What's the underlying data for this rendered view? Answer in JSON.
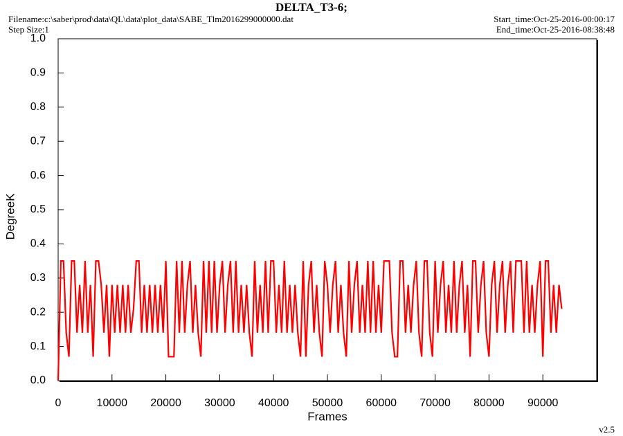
{
  "chart_data": {
    "type": "line",
    "title": "DELTA_T3-6;",
    "filename": "Filename:c:\\saber\\prod\\data\\QL\\data\\plot_data\\SABE_Tlm2016299000000.dat",
    "step_size": "Step Size:1",
    "start_time": "Start_time:Oct-25-2016-00:00:17",
    "end_time": "End_time:Oct-25-2016-08:38:48",
    "version": "v2.5",
    "x_label": "Frames",
    "y_label": "DegreeK",
    "xlim": [
      0,
      100000
    ],
    "xticks": [
      0,
      10000,
      20000,
      30000,
      40000,
      50000,
      60000,
      70000,
      80000,
      90000
    ],
    "ylim": [
      0,
      1
    ],
    "yticks": [
      {
        "value": 0,
        "label": "0.0"
      },
      0.1,
      0.2,
      0.3,
      0.4,
      0.5,
      0.6,
      0.7,
      0.8,
      0.9,
      {
        "value": 1,
        "label": "1.0"
      }
    ],
    "series": [
      {
        "name": "DELTA_T3-6",
        "color": "#ff0000",
        "x": [
          0,
          500,
          1000,
          1500,
          2000,
          2500,
          3000,
          3500,
          4000,
          4500,
          5000,
          5500,
          6000,
          6500,
          7000,
          7500,
          8000,
          8500,
          9000,
          9500,
          10000,
          10500,
          11000,
          11500,
          12000,
          12500,
          13000,
          13500,
          14000,
          14500,
          15000,
          15500,
          16000,
          16500,
          17000,
          17500,
          18000,
          18500,
          19000,
          19500,
          20000,
          20500,
          21000,
          21500,
          22000,
          22500,
          23000,
          23500,
          24000,
          24500,
          25000,
          25500,
          26000,
          26500,
          27000,
          27500,
          28000,
          28500,
          29000,
          29500,
          30000,
          30500,
          31000,
          31500,
          32000,
          32500,
          33000,
          33500,
          34000,
          34500,
          35000,
          35500,
          36000,
          36500,
          37000,
          37500,
          38000,
          38500,
          39000,
          39500,
          40000,
          40500,
          41000,
          41500,
          42000,
          42500,
          43000,
          43500,
          44000,
          44500,
          45000,
          45500,
          46000,
          46500,
          47000,
          47500,
          48000,
          48500,
          49000,
          49500,
          50000,
          50500,
          51000,
          51500,
          52000,
          52500,
          53000,
          53500,
          54000,
          54500,
          55000,
          55500,
          56000,
          56500,
          57000,
          57500,
          58000,
          58500,
          59000,
          59500,
          60000,
          60500,
          61000,
          61500,
          62000,
          62500,
          63000,
          63500,
          64000,
          64500,
          65000,
          65500,
          66000,
          66500,
          67000,
          67500,
          68000,
          68500,
          69000,
          69500,
          70000,
          70500,
          71000,
          71500,
          72000,
          72500,
          73000,
          73500,
          74000,
          74500,
          75000,
          75500,
          76000,
          76500,
          77000,
          77500,
          78000,
          78500,
          79000,
          79500,
          80000,
          80500,
          81000,
          81500,
          82000,
          82500,
          83000,
          83500,
          84000,
          84500,
          85000,
          85500,
          86000,
          86500,
          87000,
          87500,
          88000,
          88500,
          89000,
          89500,
          90000,
          90500,
          91000,
          91500,
          92000,
          92500,
          93000,
          93500
        ],
        "values": [
          0,
          0.35,
          0.35,
          0.14,
          0.07,
          0.35,
          0.35,
          0.14,
          0.28,
          0.14,
          0.35,
          0.14,
          0.28,
          0.07,
          0.35,
          0.35,
          0.28,
          0.14,
          0.28,
          0.07,
          0.28,
          0.14,
          0.28,
          0.14,
          0.28,
          0.14,
          0.28,
          0.14,
          0.21,
          0.35,
          0.35,
          0.14,
          0.28,
          0.14,
          0.28,
          0.14,
          0.28,
          0.14,
          0.28,
          0.14,
          0.35,
          0.07,
          0.07,
          0.07,
          0.35,
          0.14,
          0.35,
          0.14,
          0.28,
          0.35,
          0.14,
          0.28,
          0.14,
          0.07,
          0.35,
          0.14,
          0.35,
          0.14,
          0.35,
          0.14,
          0.28,
          0.35,
          0.14,
          0.28,
          0.35,
          0.14,
          0.35,
          0.14,
          0.28,
          0.14,
          0.28,
          0.14,
          0.07,
          0.35,
          0.14,
          0.28,
          0.14,
          0.35,
          0.14,
          0.35,
          0.35,
          0.14,
          0.28,
          0.14,
          0.35,
          0.14,
          0.28,
          0.14,
          0.28,
          0.14,
          0.07,
          0.35,
          0.07,
          0.28,
          0.35,
          0.14,
          0.28,
          0.14,
          0.07,
          0.35,
          0.28,
          0.14,
          0.28,
          0.35,
          0.14,
          0.28,
          0.14,
          0.07,
          0.35,
          0.14,
          0.28,
          0.35,
          0.14,
          0.28,
          0.14,
          0.35,
          0.14,
          0.35,
          0.14,
          0.28,
          0.14,
          0.35,
          0.35,
          0.35,
          0.14,
          0.07,
          0.07,
          0.35,
          0.35,
          0.14,
          0.28,
          0.14,
          0.28,
          0.35,
          0.14,
          0.07,
          0.35,
          0.35,
          0.14,
          0.07,
          0.35,
          0.14,
          0.28,
          0.35,
          0.14,
          0.28,
          0.14,
          0.35,
          0.14,
          0.28,
          0.35,
          0.14,
          0.28,
          0.07,
          0.35,
          0.35,
          0.14,
          0.28,
          0.35,
          0.14,
          0.07,
          0.28,
          0.35,
          0.14,
          0.28,
          0.35,
          0.14,
          0.28,
          0.35,
          0.14,
          0.35,
          0.35,
          0.35,
          0.14,
          0.35,
          0.14,
          0.28,
          0.14,
          0.28,
          0.35,
          0.07,
          0.35,
          0.35,
          0.14,
          0.28,
          0.14,
          0.28,
          0.21
        ]
      }
    ]
  }
}
